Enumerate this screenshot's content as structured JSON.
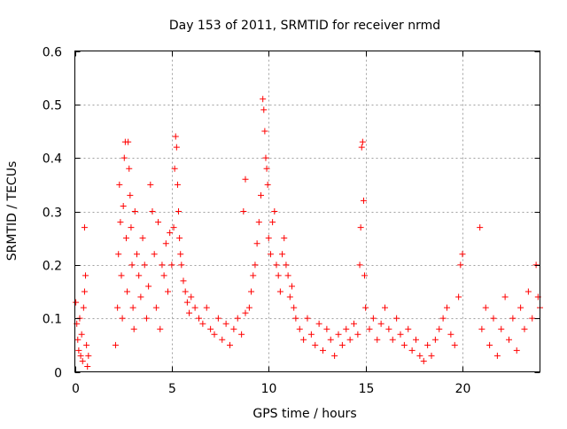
{
  "chart_data": {
    "type": "scatter",
    "title": "Day 153 of 2011, SRMTID for receiver nrmd",
    "xlabel": "GPS time / hours",
    "ylabel": "SRMTID / TECUs",
    "xlim": [
      0,
      24
    ],
    "ylim": [
      0,
      0.6
    ],
    "x_ticks": [
      "0",
      "5",
      "10",
      "15",
      "20"
    ],
    "x_tick_values": [
      0,
      5,
      10,
      15,
      20
    ],
    "y_ticks": [
      "0",
      "0.1",
      "0.2",
      "0.3",
      "0.4",
      "0.5",
      "0.6"
    ],
    "y_tick_values": [
      0,
      0.1,
      0.2,
      0.3,
      0.4,
      0.5,
      0.6
    ],
    "grid": true,
    "marker": "plus",
    "color": "#ff0000",
    "series": [
      {
        "name": "SRMTID",
        "points": [
          [
            0.05,
            0.13
          ],
          [
            0.1,
            0.09
          ],
          [
            0.15,
            0.06
          ],
          [
            0.2,
            0.04
          ],
          [
            0.25,
            0.1
          ],
          [
            0.3,
            0.03
          ],
          [
            0.35,
            0.07
          ],
          [
            0.4,
            0.02
          ],
          [
            0.45,
            0.12
          ],
          [
            0.5,
            0.15
          ],
          [
            0.55,
            0.18
          ],
          [
            0.6,
            0.05
          ],
          [
            0.5,
            0.27
          ],
          [
            0.65,
            0.01
          ],
          [
            0.7,
            0.03
          ],
          [
            2.1,
            0.05
          ],
          [
            2.2,
            0.12
          ],
          [
            2.25,
            0.22
          ],
          [
            2.3,
            0.35
          ],
          [
            2.35,
            0.28
          ],
          [
            2.4,
            0.18
          ],
          [
            2.45,
            0.1
          ],
          [
            2.5,
            0.31
          ],
          [
            2.55,
            0.4
          ],
          [
            2.6,
            0.43
          ],
          [
            2.65,
            0.25
          ],
          [
            2.7,
            0.15
          ],
          [
            2.75,
            0.43
          ],
          [
            2.8,
            0.38
          ],
          [
            2.85,
            0.33
          ],
          [
            2.9,
            0.27
          ],
          [
            2.95,
            0.2
          ],
          [
            3.0,
            0.12
          ],
          [
            3.05,
            0.08
          ],
          [
            3.1,
            0.3
          ],
          [
            3.2,
            0.22
          ],
          [
            3.3,
            0.18
          ],
          [
            3.4,
            0.14
          ],
          [
            3.5,
            0.25
          ],
          [
            3.6,
            0.2
          ],
          [
            3.7,
            0.1
          ],
          [
            3.8,
            0.16
          ],
          [
            3.9,
            0.35
          ],
          [
            4.0,
            0.3
          ],
          [
            4.1,
            0.22
          ],
          [
            4.2,
            0.12
          ],
          [
            4.3,
            0.28
          ],
          [
            4.4,
            0.08
          ],
          [
            4.5,
            0.2
          ],
          [
            4.6,
            0.18
          ],
          [
            4.7,
            0.24
          ],
          [
            4.8,
            0.15
          ],
          [
            4.9,
            0.26
          ],
          [
            5.0,
            0.2
          ],
          [
            5.1,
            0.27
          ],
          [
            5.15,
            0.38
          ],
          [
            5.2,
            0.44
          ],
          [
            5.25,
            0.42
          ],
          [
            5.3,
            0.35
          ],
          [
            5.35,
            0.3
          ],
          [
            5.4,
            0.25
          ],
          [
            5.45,
            0.22
          ],
          [
            5.5,
            0.2
          ],
          [
            5.6,
            0.17
          ],
          [
            5.7,
            0.15
          ],
          [
            5.8,
            0.13
          ],
          [
            5.9,
            0.11
          ],
          [
            6.0,
            0.14
          ],
          [
            6.2,
            0.12
          ],
          [
            6.4,
            0.1
          ],
          [
            6.6,
            0.09
          ],
          [
            6.8,
            0.12
          ],
          [
            7.0,
            0.08
          ],
          [
            7.2,
            0.07
          ],
          [
            7.4,
            0.1
          ],
          [
            7.6,
            0.06
          ],
          [
            7.8,
            0.09
          ],
          [
            8.0,
            0.05
          ],
          [
            8.2,
            0.08
          ],
          [
            8.4,
            0.1
          ],
          [
            8.6,
            0.07
          ],
          [
            8.8,
            0.11
          ],
          [
            9.0,
            0.12
          ],
          [
            8.7,
            0.3
          ],
          [
            8.8,
            0.36
          ],
          [
            9.1,
            0.15
          ],
          [
            9.2,
            0.18
          ],
          [
            9.3,
            0.2
          ],
          [
            9.4,
            0.24
          ],
          [
            9.5,
            0.28
          ],
          [
            9.6,
            0.33
          ],
          [
            9.7,
            0.51
          ],
          [
            9.75,
            0.49
          ],
          [
            9.8,
            0.45
          ],
          [
            9.85,
            0.4
          ],
          [
            9.9,
            0.38
          ],
          [
            9.95,
            0.35
          ],
          [
            10.0,
            0.25
          ],
          [
            10.1,
            0.22
          ],
          [
            10.2,
            0.28
          ],
          [
            10.3,
            0.3
          ],
          [
            10.4,
            0.2
          ],
          [
            10.5,
            0.18
          ],
          [
            10.6,
            0.15
          ],
          [
            10.7,
            0.22
          ],
          [
            10.8,
            0.25
          ],
          [
            10.9,
            0.2
          ],
          [
            11.0,
            0.18
          ],
          [
            11.1,
            0.14
          ],
          [
            11.2,
            0.16
          ],
          [
            11.3,
            0.12
          ],
          [
            11.4,
            0.1
          ],
          [
            11.6,
            0.08
          ],
          [
            11.8,
            0.06
          ],
          [
            12.0,
            0.1
          ],
          [
            12.2,
            0.07
          ],
          [
            12.4,
            0.05
          ],
          [
            12.6,
            0.09
          ],
          [
            12.8,
            0.04
          ],
          [
            13.0,
            0.08
          ],
          [
            13.2,
            0.06
          ],
          [
            13.4,
            0.03
          ],
          [
            13.6,
            0.07
          ],
          [
            13.8,
            0.05
          ],
          [
            14.0,
            0.08
          ],
          [
            14.2,
            0.06
          ],
          [
            14.4,
            0.09
          ],
          [
            14.6,
            0.07
          ],
          [
            14.7,
            0.2
          ],
          [
            14.75,
            0.27
          ],
          [
            14.8,
            0.42
          ],
          [
            14.85,
            0.43
          ],
          [
            14.9,
            0.32
          ],
          [
            14.95,
            0.18
          ],
          [
            15.0,
            0.12
          ],
          [
            15.2,
            0.08
          ],
          [
            15.4,
            0.1
          ],
          [
            15.6,
            0.06
          ],
          [
            15.8,
            0.09
          ],
          [
            16.0,
            0.12
          ],
          [
            16.2,
            0.08
          ],
          [
            16.4,
            0.06
          ],
          [
            16.6,
            0.1
          ],
          [
            16.8,
            0.07
          ],
          [
            17.0,
            0.05
          ],
          [
            17.2,
            0.08
          ],
          [
            17.4,
            0.04
          ],
          [
            17.6,
            0.06
          ],
          [
            17.8,
            0.03
          ],
          [
            18.0,
            0.02
          ],
          [
            18.2,
            0.05
          ],
          [
            18.4,
            0.03
          ],
          [
            18.6,
            0.06
          ],
          [
            18.8,
            0.08
          ],
          [
            19.0,
            0.1
          ],
          [
            19.2,
            0.12
          ],
          [
            19.4,
            0.07
          ],
          [
            19.6,
            0.05
          ],
          [
            19.8,
            0.14
          ],
          [
            19.9,
            0.2
          ],
          [
            20.0,
            0.22
          ],
          [
            20.9,
            0.27
          ],
          [
            21.0,
            0.08
          ],
          [
            21.2,
            0.12
          ],
          [
            21.4,
            0.05
          ],
          [
            21.6,
            0.1
          ],
          [
            21.8,
            0.03
          ],
          [
            22.0,
            0.08
          ],
          [
            22.2,
            0.14
          ],
          [
            22.4,
            0.06
          ],
          [
            22.6,
            0.1
          ],
          [
            22.8,
            0.04
          ],
          [
            23.0,
            0.12
          ],
          [
            23.2,
            0.08
          ],
          [
            23.4,
            0.15
          ],
          [
            23.6,
            0.1
          ],
          [
            23.8,
            0.2
          ],
          [
            23.9,
            0.14
          ],
          [
            24.0,
            0.12
          ]
        ]
      }
    ]
  }
}
